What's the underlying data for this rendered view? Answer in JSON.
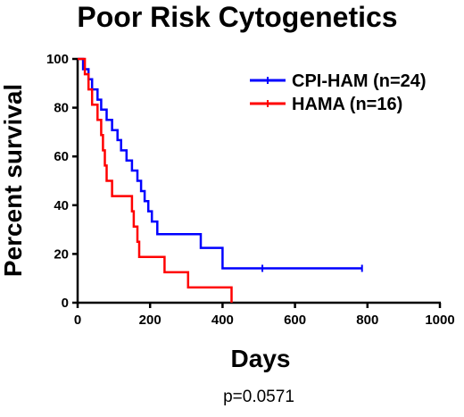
{
  "chart_data": {
    "type": "line",
    "title": "Poor Risk Cytogenetics",
    "xlabel": "Days",
    "ylabel": "Percent survival",
    "xlim": [
      0,
      1000
    ],
    "ylim": [
      0,
      100
    ],
    "xticks": [
      "0",
      "200",
      "400",
      "600",
      "800",
      "1000"
    ],
    "yticks": [
      "0",
      "20",
      "40",
      "60",
      "80",
      "100"
    ],
    "legend_position": "top-right",
    "annotation": "p=0.0571",
    "series": [
      {
        "name": "CPI-HAM (n=24)",
        "color": "#0000ff",
        "step": true,
        "points": [
          [
            0,
            100
          ],
          [
            15,
            100
          ],
          [
            15,
            95.8
          ],
          [
            30,
            95.8
          ],
          [
            30,
            91.7
          ],
          [
            40,
            91.7
          ],
          [
            40,
            87.5
          ],
          [
            55,
            87.5
          ],
          [
            55,
            83.3
          ],
          [
            65,
            83.3
          ],
          [
            65,
            79.2
          ],
          [
            80,
            79.2
          ],
          [
            80,
            75
          ],
          [
            95,
            75
          ],
          [
            95,
            70.8
          ],
          [
            110,
            70.8
          ],
          [
            110,
            66.7
          ],
          [
            120,
            66.7
          ],
          [
            120,
            62.5
          ],
          [
            135,
            62.5
          ],
          [
            135,
            58.3
          ],
          [
            150,
            58.3
          ],
          [
            150,
            54.2
          ],
          [
            165,
            54.2
          ],
          [
            165,
            50
          ],
          [
            175,
            50
          ],
          [
            175,
            45.8
          ],
          [
            185,
            45.8
          ],
          [
            185,
            41.7
          ],
          [
            195,
            41.7
          ],
          [
            195,
            37.5
          ],
          [
            205,
            37.5
          ],
          [
            205,
            33.3
          ],
          [
            220,
            33.3
          ],
          [
            220,
            28.1
          ],
          [
            340,
            28.1
          ],
          [
            340,
            22.5
          ],
          [
            400,
            22.5
          ],
          [
            400,
            14.1
          ],
          [
            785,
            14.1
          ]
        ],
        "censored_x": [
          510,
          785
        ]
      },
      {
        "name": "HAMA (n=16)",
        "color": "#ff0000",
        "step": true,
        "points": [
          [
            0,
            100
          ],
          [
            20,
            100
          ],
          [
            20,
            93.75
          ],
          [
            30,
            93.75
          ],
          [
            30,
            87.5
          ],
          [
            40,
            87.5
          ],
          [
            40,
            81.25
          ],
          [
            55,
            81.25
          ],
          [
            55,
            75
          ],
          [
            65,
            75
          ],
          [
            65,
            68.75
          ],
          [
            70,
            68.75
          ],
          [
            70,
            62.5
          ],
          [
            75,
            62.5
          ],
          [
            75,
            56.25
          ],
          [
            80,
            56.25
          ],
          [
            80,
            50
          ],
          [
            95,
            50
          ],
          [
            95,
            43.75
          ],
          [
            150,
            43.75
          ],
          [
            150,
            37.5
          ],
          [
            155,
            37.5
          ],
          [
            155,
            31.25
          ],
          [
            165,
            31.25
          ],
          [
            165,
            25
          ],
          [
            170,
            25
          ],
          [
            170,
            18.75
          ],
          [
            240,
            18.75
          ],
          [
            240,
            12.5
          ],
          [
            305,
            12.5
          ],
          [
            305,
            6.25
          ],
          [
            425,
            6.25
          ],
          [
            425,
            0
          ]
        ],
        "censored_x": []
      }
    ]
  }
}
